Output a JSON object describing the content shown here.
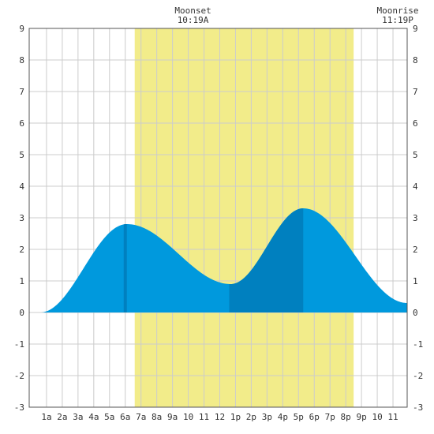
{
  "chart_data": {
    "type": "area",
    "title": "",
    "xlabel": "",
    "ylabel": "",
    "xlim": [
      -0.1,
      23.9
    ],
    "ylim": [
      -3,
      9
    ],
    "y_ticks": [
      -3,
      -2,
      -1,
      0,
      1,
      2,
      3,
      4,
      5,
      6,
      7,
      8,
      9
    ],
    "x_ticks": [
      {
        "x": 1,
        "label": "1a"
      },
      {
        "x": 2,
        "label": "2a"
      },
      {
        "x": 3,
        "label": "3a"
      },
      {
        "x": 4,
        "label": "4a"
      },
      {
        "x": 5,
        "label": "5a"
      },
      {
        "x": 6,
        "label": "6a"
      },
      {
        "x": 7,
        "label": "7a"
      },
      {
        "x": 8,
        "label": "8a"
      },
      {
        "x": 9,
        "label": "9a"
      },
      {
        "x": 10,
        "label": "10"
      },
      {
        "x": 11,
        "label": "11"
      },
      {
        "x": 12,
        "label": "12"
      },
      {
        "x": 13,
        "label": "1p"
      },
      {
        "x": 14,
        "label": "2p"
      },
      {
        "x": 15,
        "label": "3p"
      },
      {
        "x": 16,
        "label": "4p"
      },
      {
        "x": 17,
        "label": "5p"
      },
      {
        "x": 18,
        "label": "6p"
      },
      {
        "x": 19,
        "label": "7p"
      },
      {
        "x": 20,
        "label": "8p"
      },
      {
        "x": 21,
        "label": "9p"
      },
      {
        "x": 22,
        "label": "10"
      },
      {
        "x": 23,
        "label": "11"
      }
    ],
    "grid": true,
    "daylight": {
      "start": 6.6,
      "end": 20.5
    },
    "tide_extremes": [
      {
        "time": 0.6,
        "height": 0.0
      },
      {
        "time": 6.1,
        "height": 2.8
      },
      {
        "time": 12.7,
        "height": 0.9
      },
      {
        "time": 17.3,
        "height": 3.3
      },
      {
        "time": 23.9,
        "height": 0.3
      }
    ],
    "dark_bands": [
      {
        "start": 5.9,
        "end": 6.1
      },
      {
        "start": 12.6,
        "end": 17.3
      }
    ],
    "moon_annotations": [
      {
        "title": "Moonset",
        "time_label": "10:19A",
        "x": 10.3
      },
      {
        "title": "Moonrise",
        "time_label": "11:19P",
        "x": 23.3
      }
    ],
    "colors": {
      "daylight": "#f2ec8a",
      "tide": "#0099dd",
      "tide_dark": "#0080bf",
      "grid": "#cccccc",
      "frame": "#555555"
    }
  }
}
